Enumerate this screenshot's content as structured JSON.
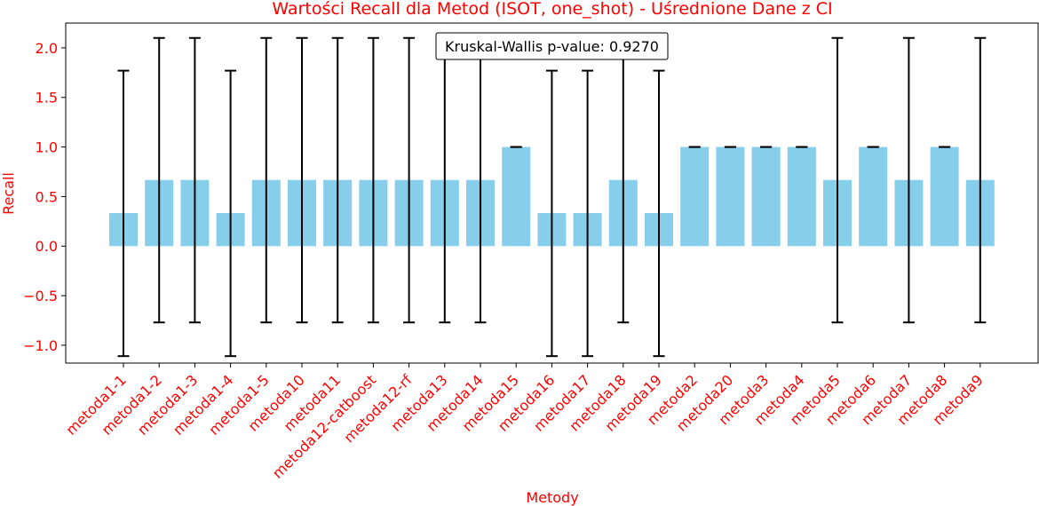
{
  "chart_data": {
    "type": "bar",
    "title": "Wartości Recall dla Metod (ISOT, one_shot) - Uśrednione Dane z CI",
    "xlabel": "Metody",
    "ylabel": "Recall",
    "ylim": [
      -1.18,
      2.25
    ],
    "yticks": [
      -1.0,
      -0.5,
      0.0,
      0.5,
      1.0,
      1.5,
      2.0
    ],
    "ytick_labels": [
      "−1.0",
      "−0.5",
      "0.0",
      "0.5",
      "1.0",
      "1.5",
      "2.0"
    ],
    "categories": [
      "metoda1-1",
      "metoda1-2",
      "metoda1-3",
      "metoda1-4",
      "metoda1-5",
      "metoda10",
      "metoda11",
      "metoda12-catboost",
      "metoda12-rf",
      "metoda13",
      "metoda14",
      "metoda15",
      "metoda16",
      "metoda17",
      "metoda18",
      "metoda19",
      "metoda2",
      "metoda20",
      "metoda3",
      "metoda4",
      "metoda5",
      "metoda6",
      "metoda7",
      "metoda8",
      "metoda9"
    ],
    "values": [
      0.333,
      0.667,
      0.667,
      0.333,
      0.667,
      0.667,
      0.667,
      0.667,
      0.667,
      0.667,
      0.667,
      1.0,
      0.333,
      0.333,
      0.667,
      0.333,
      1.0,
      1.0,
      1.0,
      1.0,
      0.667,
      1.0,
      0.667,
      1.0,
      0.667
    ],
    "ci_lower": [
      -1.11,
      -0.77,
      -0.77,
      -1.11,
      -0.77,
      -0.77,
      -0.77,
      -0.77,
      -0.77,
      -0.77,
      -0.77,
      1.0,
      -1.11,
      -1.11,
      -0.77,
      -1.11,
      1.0,
      1.0,
      1.0,
      1.0,
      -0.77,
      1.0,
      -0.77,
      1.0,
      -0.77
    ],
    "ci_upper": [
      1.77,
      2.1,
      2.1,
      1.77,
      2.1,
      2.1,
      2.1,
      2.1,
      2.1,
      2.1,
      2.1,
      1.0,
      1.77,
      1.77,
      2.1,
      1.77,
      1.0,
      1.0,
      1.0,
      1.0,
      2.1,
      1.0,
      2.1,
      1.0,
      2.1
    ],
    "annotation": "Kruskal-Wallis p-value: 0.9270",
    "grid": false,
    "colors": {
      "bar": "#87ceeb",
      "error": "#000000",
      "text": "#ff0000",
      "axis": "#000000"
    }
  }
}
